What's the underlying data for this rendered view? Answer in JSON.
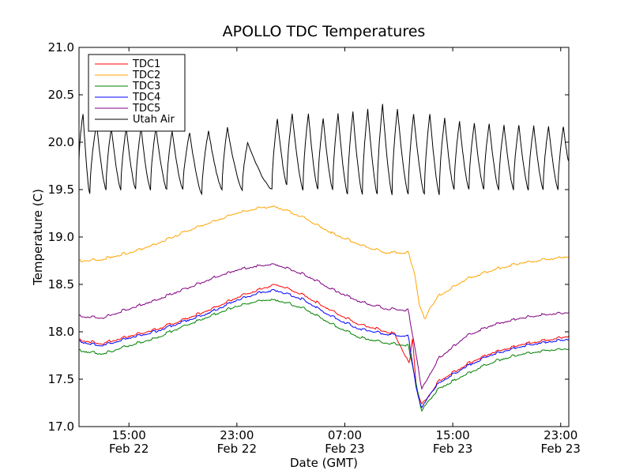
{
  "chart_data": {
    "type": "line",
    "title": "APOLLO TDC Temperatures",
    "xlabel": "Date (GMT)",
    "ylabel": "Temperature (C)",
    "xlim": [
      11.3,
      47.6
    ],
    "ylim": [
      17.0,
      21.0
    ],
    "x_unit": "hours since Feb 22 00:00 GMT",
    "y_ticks": [
      17.0,
      17.5,
      18.0,
      18.5,
      19.0,
      19.5,
      20.0,
      20.5,
      21.0
    ],
    "y_tick_labels": [
      "17.0",
      "17.5",
      "18.0",
      "18.5",
      "19.0",
      "19.5",
      "20.0",
      "20.5",
      "21.0"
    ],
    "x_ticks": [
      15,
      23,
      31,
      39,
      47
    ],
    "x_tick_labels": [
      {
        "time": "15:00",
        "date": "Feb 22"
      },
      {
        "time": "23:00",
        "date": "Feb 22"
      },
      {
        "time": "07:00",
        "date": "Feb 23"
      },
      {
        "time": "15:00",
        "date": "Feb 23"
      },
      {
        "time": "23:00",
        "date": "Feb 23"
      }
    ],
    "grid": false,
    "legend_position": "top-left",
    "series": [
      {
        "name": "TDC1",
        "color": "#ff0000",
        "x": [
          11.3,
          13,
          15,
          17,
          19,
          21,
          23,
          25,
          26,
          28,
          30,
          32,
          34,
          36,
          34.7,
          35.8,
          36.3,
          36.7,
          37.1,
          38,
          40,
          42,
          44,
          46,
          47.6
        ],
        "y": [
          17.91,
          17.87,
          17.95,
          18.02,
          18.12,
          18.23,
          18.36,
          18.46,
          18.49,
          18.38,
          18.22,
          18.08,
          18.0,
          17.96,
          17.97,
          17.65,
          17.42,
          17.22,
          17.3,
          17.48,
          17.65,
          17.78,
          17.86,
          17.91,
          17.95
        ]
      },
      {
        "name": "TDC2",
        "color": "#ffa500",
        "x": [
          11.3,
          13,
          15,
          17,
          19,
          21,
          23,
          25,
          26,
          28,
          30,
          32,
          34,
          35.7,
          36.2,
          36.5,
          36.9,
          37.3,
          38,
          40,
          42,
          44,
          46,
          47.6
        ],
        "y": [
          18.74,
          18.76,
          18.83,
          18.92,
          19.04,
          19.15,
          19.25,
          19.31,
          19.31,
          19.2,
          19.04,
          18.92,
          18.83,
          18.83,
          18.6,
          18.3,
          18.12,
          18.25,
          18.38,
          18.55,
          18.65,
          18.72,
          18.76,
          18.79
        ]
      },
      {
        "name": "TDC3",
        "color": "#008000",
        "x": [
          11.3,
          13,
          15,
          17,
          19,
          21,
          23,
          25,
          26,
          28,
          30,
          32,
          34,
          35.7,
          36.3,
          36.7,
          37.1,
          38,
          40,
          42,
          44,
          46,
          47.6
        ],
        "y": [
          17.8,
          17.76,
          17.85,
          17.93,
          18.05,
          18.16,
          18.27,
          18.33,
          18.33,
          18.24,
          18.08,
          17.94,
          17.88,
          17.85,
          17.45,
          17.15,
          17.25,
          17.4,
          17.55,
          17.68,
          17.76,
          17.8,
          17.82
        ]
      },
      {
        "name": "TDC4",
        "color": "#0000ff",
        "x": [
          11.3,
          13,
          15,
          17,
          19,
          21,
          23,
          25,
          26,
          28,
          30,
          32,
          34,
          35.7,
          36.3,
          36.7,
          37.1,
          38,
          40,
          42,
          44,
          46,
          47.6
        ],
        "y": [
          17.89,
          17.85,
          17.93,
          18.0,
          18.1,
          18.2,
          18.33,
          18.42,
          18.43,
          18.33,
          18.16,
          18.03,
          17.97,
          17.95,
          17.4,
          17.18,
          17.3,
          17.46,
          17.63,
          17.76,
          17.84,
          17.89,
          17.92
        ]
      },
      {
        "name": "TDC5",
        "color": "#800080",
        "x": [
          11.3,
          13,
          15,
          17,
          19,
          21,
          23,
          25,
          26,
          28,
          30,
          32,
          34,
          35.7,
          36.3,
          36.7,
          37.1,
          38,
          40,
          42,
          44,
          46,
          47.6
        ],
        "y": [
          18.16,
          18.14,
          18.24,
          18.33,
          18.44,
          18.55,
          18.65,
          18.7,
          18.7,
          18.6,
          18.45,
          18.32,
          18.24,
          18.22,
          17.75,
          17.38,
          17.5,
          17.72,
          17.95,
          18.07,
          18.14,
          18.18,
          18.2
        ]
      },
      {
        "name": "Utah Air",
        "color": "#000000",
        "style": "sawtooth",
        "cycles_hours": [
          [
            11.3,
            19.8
          ],
          [
            11.6,
            20.3
          ],
          [
            12.1,
            19.45
          ],
          [
            12.6,
            20.2
          ],
          [
            13.3,
            19.5
          ],
          [
            13.7,
            20.15
          ],
          [
            14.4,
            19.5
          ],
          [
            14.8,
            20.15
          ],
          [
            15.5,
            19.5
          ],
          [
            15.9,
            20.15
          ],
          [
            16.6,
            19.5
          ],
          [
            17.0,
            20.15
          ],
          [
            17.8,
            19.5
          ],
          [
            18.2,
            20.12
          ],
          [
            19.0,
            19.5
          ],
          [
            19.5,
            20.1
          ],
          [
            20.4,
            19.45
          ],
          [
            20.9,
            20.12
          ],
          [
            21.9,
            19.5
          ],
          [
            22.3,
            20.15
          ],
          [
            23.4,
            19.5
          ],
          [
            23.8,
            20.0
          ],
          [
            25.6,
            19.5
          ],
          [
            26.0,
            20.25
          ],
          [
            26.7,
            19.55
          ],
          [
            27.1,
            20.3
          ],
          [
            27.9,
            19.5
          ],
          [
            28.3,
            20.3
          ],
          [
            29.0,
            19.5
          ],
          [
            29.4,
            20.25
          ],
          [
            30.1,
            19.5
          ],
          [
            30.5,
            20.3
          ],
          [
            31.2,
            19.45
          ],
          [
            31.6,
            20.32
          ],
          [
            32.3,
            19.45
          ],
          [
            32.7,
            20.35
          ],
          [
            33.4,
            19.45
          ],
          [
            33.8,
            20.4
          ],
          [
            34.5,
            19.45
          ],
          [
            34.9,
            20.35
          ],
          [
            35.7,
            19.45
          ],
          [
            36.1,
            20.3
          ],
          [
            36.9,
            19.45
          ],
          [
            37.3,
            20.3
          ],
          [
            38.0,
            19.45
          ],
          [
            38.4,
            20.25
          ],
          [
            39.1,
            19.5
          ],
          [
            39.5,
            20.22
          ],
          [
            40.2,
            19.5
          ],
          [
            40.6,
            20.2
          ],
          [
            41.3,
            19.5
          ],
          [
            41.7,
            20.2
          ],
          [
            42.4,
            19.5
          ],
          [
            42.8,
            20.18
          ],
          [
            43.5,
            19.5
          ],
          [
            43.9,
            20.18
          ],
          [
            44.6,
            19.5
          ],
          [
            45.0,
            20.17
          ],
          [
            45.7,
            19.5
          ],
          [
            46.1,
            20.17
          ],
          [
            46.8,
            19.5
          ],
          [
            47.2,
            20.17
          ],
          [
            47.6,
            19.8
          ]
        ]
      }
    ]
  }
}
